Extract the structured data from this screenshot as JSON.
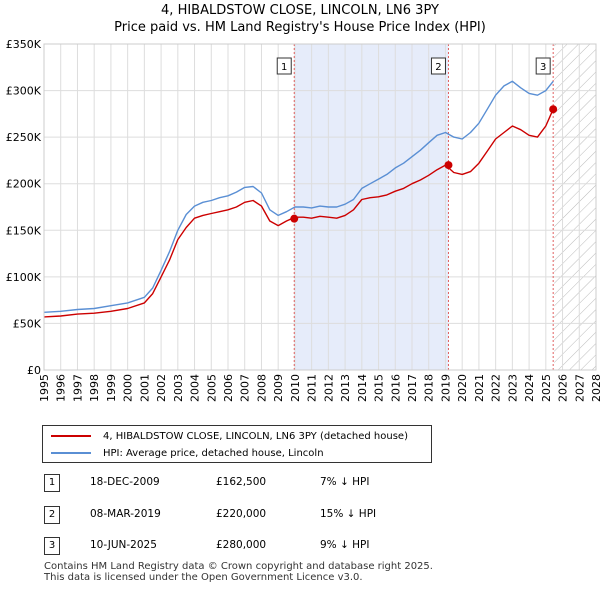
{
  "title": {
    "line1": "4, HIBALDSTOW CLOSE, LINCOLN, LN6 3PY",
    "line2": "Price paid vs. HM Land Registry's House Price Index (HPI)"
  },
  "chart_data": {
    "type": "line",
    "title": "Price paid vs. HM Land Registry's House Price Index (HPI)",
    "xlabel": "",
    "ylabel": "",
    "xlim": [
      1995,
      2028
    ],
    "ylim": [
      0,
      350000
    ],
    "y_ticks": [
      {
        "value": 0,
        "label": "£0"
      },
      {
        "value": 50000,
        "label": "£50K"
      },
      {
        "value": 100000,
        "label": "£100K"
      },
      {
        "value": 150000,
        "label": "£150K"
      },
      {
        "value": 200000,
        "label": "£200K"
      },
      {
        "value": 250000,
        "label": "£250K"
      },
      {
        "value": 300000,
        "label": "£300K"
      },
      {
        "value": 350000,
        "label": "£350K"
      }
    ],
    "x_ticks": [
      "1995",
      "1996",
      "1997",
      "1998",
      "1999",
      "2000",
      "2001",
      "2002",
      "2003",
      "2004",
      "2005",
      "2006",
      "2007",
      "2008",
      "2009",
      "2010",
      "2011",
      "2012",
      "2013",
      "2014",
      "2015",
      "2016",
      "2017",
      "2018",
      "2019",
      "2020",
      "2021",
      "2022",
      "2023",
      "2024",
      "2025",
      "2026",
      "2027",
      "2028"
    ],
    "grid": true,
    "shaded_period": [
      2009.96,
      2019.18
    ],
    "hatched_future_from": 2025.5,
    "series": [
      {
        "name": "4, HIBALDSTOW CLOSE, LINCOLN, LN6 3PY (detached house)",
        "color": "#cc0000",
        "x": [
          1995,
          1996,
          1997,
          1998,
          1999,
          2000,
          2001,
          2001.5,
          2002,
          2002.5,
          2003,
          2003.5,
          2004,
          2004.5,
          2005,
          2005.5,
          2006,
          2006.5,
          2007,
          2007.5,
          2008,
          2008.5,
          2009,
          2009.5,
          2010,
          2010.5,
          2011,
          2011.5,
          2012,
          2012.5,
          2013,
          2013.5,
          2014,
          2014.5,
          2015,
          2015.5,
          2016,
          2016.5,
          2017,
          2017.5,
          2018,
          2018.5,
          2019,
          2019.5,
          2020,
          2020.5,
          2021,
          2021.5,
          2022,
          2022.5,
          2023,
          2023.5,
          2024,
          2024.5,
          2025,
          2025.44
        ],
        "y": [
          57000,
          58000,
          60000,
          61000,
          63000,
          66000,
          72000,
          82000,
          100000,
          118000,
          140000,
          153000,
          163000,
          166000,
          168000,
          170000,
          172000,
          175000,
          180000,
          182000,
          176000,
          160000,
          155000,
          160000,
          164000,
          164000,
          163000,
          165000,
          164000,
          163000,
          166000,
          172000,
          183000,
          185000,
          186000,
          188000,
          192000,
          195000,
          200000,
          204000,
          209000,
          215000,
          220000,
          212000,
          210000,
          213000,
          222000,
          235000,
          248000,
          255000,
          262000,
          258000,
          252000,
          250000,
          262000,
          280000
        ]
      },
      {
        "name": "HPI: Average price, detached house, Lincoln",
        "color": "#5a8fd4",
        "x": [
          1995,
          1996,
          1997,
          1998,
          1999,
          2000,
          2001,
          2001.5,
          2002,
          2002.5,
          2003,
          2003.5,
          2004,
          2004.5,
          2005,
          2005.5,
          2006,
          2006.5,
          2007,
          2007.5,
          2008,
          2008.5,
          2009,
          2009.5,
          2010,
          2010.5,
          2011,
          2011.5,
          2012,
          2012.5,
          2013,
          2013.5,
          2014,
          2014.5,
          2015,
          2015.5,
          2016,
          2016.5,
          2017,
          2017.5,
          2018,
          2018.5,
          2019,
          2019.5,
          2020,
          2020.5,
          2021,
          2021.5,
          2022,
          2022.5,
          2023,
          2023.5,
          2024,
          2024.5,
          2025,
          2025.44
        ],
        "y": [
          62000,
          63000,
          65000,
          66000,
          69000,
          72000,
          78000,
          88000,
          107000,
          127000,
          150000,
          167000,
          176000,
          180000,
          182000,
          185000,
          187000,
          191000,
          196000,
          197000,
          190000,
          172000,
          166000,
          170000,
          175000,
          175000,
          174000,
          176000,
          175000,
          175000,
          178000,
          183000,
          195000,
          200000,
          205000,
          210000,
          217000,
          222000,
          229000,
          236000,
          244000,
          252000,
          255000,
          250000,
          248000,
          255000,
          265000,
          280000,
          295000,
          305000,
          310000,
          303000,
          297000,
          295000,
          300000,
          310000
        ]
      }
    ],
    "sales": [
      {
        "label": "1",
        "x": 2009.96,
        "y": 162500
      },
      {
        "label": "2",
        "x": 2019.18,
        "y": 220000
      },
      {
        "label": "3",
        "x": 2025.44,
        "y": 280000
      }
    ]
  },
  "legend": {
    "red_label": "4, HIBALDSTOW CLOSE, LINCOLN, LN6 3PY (detached house)",
    "blue_label": "HPI: Average price, detached house, Lincoln",
    "red_color": "#cc0000",
    "blue_color": "#5a8fd4"
  },
  "sales_table": [
    {
      "num": "1",
      "date": "18-DEC-2009",
      "price": "£162,500",
      "delta": "7% ↓ HPI"
    },
    {
      "num": "2",
      "date": "08-MAR-2019",
      "price": "£220,000",
      "delta": "15% ↓ HPI"
    },
    {
      "num": "3",
      "date": "10-JUN-2025",
      "price": "£280,000",
      "delta": "9% ↓ HPI"
    }
  ],
  "footer": {
    "line1": "Contains HM Land Registry data © Crown copyright and database right 2025.",
    "line2": "This data is licensed under the Open Government Licence v3.0."
  }
}
